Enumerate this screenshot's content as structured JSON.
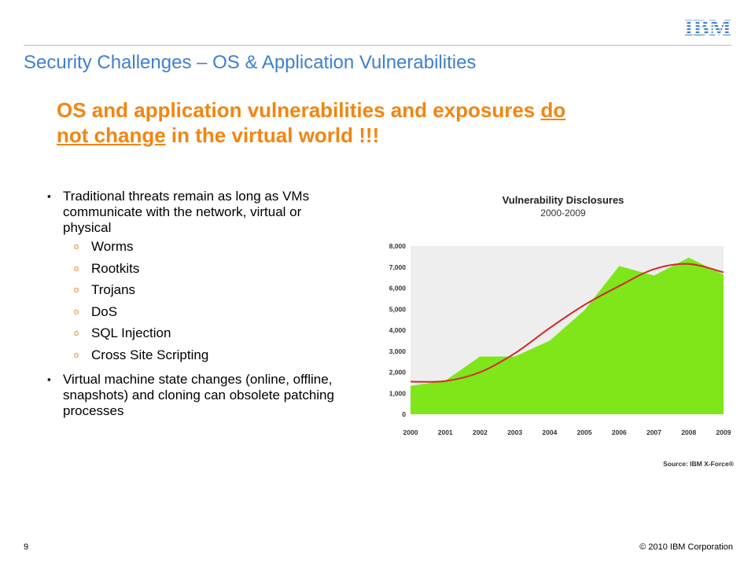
{
  "slide": {
    "title": "Security Challenges – OS & Application Vulnerabilities",
    "logo_text": "IBM",
    "headline": {
      "part1": "OS and application vulnerabilities and exposures ",
      "underlined1": "do",
      "underlined2": "not change",
      "part2": " in the virtual world !!!"
    },
    "bullets": [
      {
        "marker": "▪",
        "text": "Traditional threats remain as long as VMs communicate with the network, virtual or physical",
        "sub_marker": "o",
        "subitems": [
          "Worms",
          "Rootkits",
          "Trojans",
          "DoS",
          "SQL Injection",
          "Cross Site Scripting"
        ]
      },
      {
        "marker": "▪",
        "text": "Virtual machine state changes (online, offline, snapshots) and cloning can obsolete patching processes"
      }
    ],
    "page_number": "9",
    "copyright": "© 2010 IBM Corporation"
  },
  "colors": {
    "title": "#3f7fd2",
    "headline": "#f2850f",
    "area_fill": "#7fe61a",
    "trend_line": "#d3262b",
    "plot_bg": "#eeeeee"
  },
  "chart_data": {
    "type": "area",
    "title": "Vulnerability Disclosures",
    "subtitle": "2000-2009",
    "source": "Source: IBM X-Force®",
    "x": [
      "2000",
      "2001",
      "2002",
      "2003",
      "2004",
      "2005",
      "2006",
      "2007",
      "2008",
      "2009"
    ],
    "ylim": [
      0,
      8000
    ],
    "yticks": [
      "8,000",
      "7,000",
      "6,000",
      "5,000",
      "4,000",
      "3,000",
      "2,000",
      "1,000",
      "0"
    ],
    "ytick_values": [
      8000,
      7000,
      6000,
      5000,
      4000,
      3000,
      2000,
      1000,
      0
    ],
    "series": [
      {
        "kind": "area",
        "values": [
          1350,
          1600,
          2750,
          2750,
          3500,
          4950,
          7050,
          6600,
          7450,
          6650
        ]
      },
      {
        "kind": "line",
        "values": [
          1550,
          1580,
          2000,
          2900,
          4100,
          5200,
          6100,
          6900,
          7150,
          6750
        ]
      }
    ],
    "grid": false,
    "legend": "none"
  }
}
